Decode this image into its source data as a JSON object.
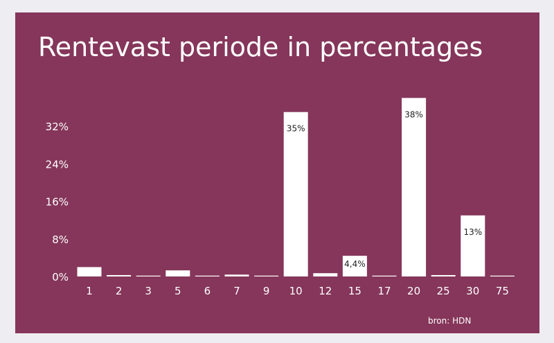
{
  "chart_data": {
    "type": "bar",
    "title": "Rentevast periode in percentages",
    "xlabel": "",
    "ylabel": "",
    "categories": [
      "1",
      "2",
      "3",
      "5",
      "6",
      "7",
      "9",
      "10",
      "12",
      "15",
      "17",
      "20",
      "25",
      "30",
      "75"
    ],
    "values": [
      2.0,
      0.3,
      0.1,
      1.3,
      0.1,
      0.4,
      0.1,
      35,
      0.7,
      4.4,
      0.1,
      38,
      0.3,
      13,
      0.1
    ],
    "data_labels": [
      "",
      "",
      "",
      "",
      "",
      "",
      "",
      "35%",
      "",
      "4,4%",
      "",
      "38%",
      "",
      "13%",
      ""
    ],
    "yticks": [
      0,
      8,
      16,
      24,
      32
    ],
    "ytick_labels": [
      "0%",
      "8%",
      "16%",
      "24%",
      "32%"
    ],
    "ylim": [
      0,
      40
    ],
    "grid": false,
    "legend": "none",
    "source": "bron: HDN",
    "colors": {
      "background": "#85365a",
      "bar": "#ffffff",
      "text": "#ffffff",
      "data_label": "#222222"
    }
  }
}
